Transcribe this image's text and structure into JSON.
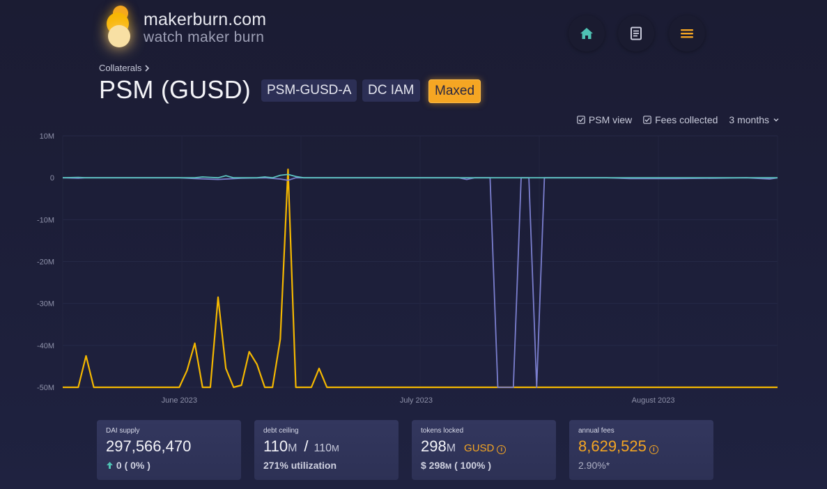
{
  "header": {
    "site": "makerburn.com",
    "tagline": "watch maker burn",
    "nav": [
      {
        "icon": "home-icon",
        "color": "#4fc3b4"
      },
      {
        "icon": "document-icon",
        "color": "#c9cbdb"
      },
      {
        "icon": "menu-icon",
        "color": "#f5a623"
      }
    ]
  },
  "breadcrumb": {
    "label": "Collaterals",
    "chevron": "chevron-right-icon"
  },
  "page": {
    "title": "PSM (GUSD)",
    "badges": [
      "PSM-GUSD-A",
      "DC IAM",
      "Maxed"
    ]
  },
  "controls": {
    "psm_view": "PSM view",
    "fees_collected": "Fees collected",
    "range": "3 months"
  },
  "chart_data": {
    "type": "line",
    "y_ticks": [
      "10M",
      "0",
      "-10M",
      "-20M",
      "-30M",
      "-40M",
      "-50M"
    ],
    "x_ticks": [
      "June 2023",
      "July 2023",
      "August 2023"
    ],
    "ylim": [
      -50,
      10
    ],
    "y_unit": "M",
    "series": [
      {
        "color": "#f5b800",
        "points": [
          [
            0,
            -50
          ],
          [
            2,
            -50
          ],
          [
            3,
            -42.5
          ],
          [
            4,
            -50
          ],
          [
            15,
            -50
          ],
          [
            16,
            -46
          ],
          [
            17,
            -39.5
          ],
          [
            18,
            -50
          ],
          [
            19,
            -50
          ],
          [
            20,
            -28.5
          ],
          [
            21,
            -45.5
          ],
          [
            22,
            -50
          ],
          [
            23,
            -49.5
          ],
          [
            24,
            -41.5
          ],
          [
            25,
            -44.5
          ],
          [
            26,
            -50
          ],
          [
            27,
            -50
          ],
          [
            28,
            -38.5
          ],
          [
            29,
            2
          ],
          [
            30,
            -50
          ],
          [
            32,
            -50
          ],
          [
            33,
            -45.5
          ],
          [
            34,
            -50
          ],
          [
            92,
            -50
          ]
        ]
      },
      {
        "color": "#7b7fcf",
        "points": [
          [
            0,
            0
          ],
          [
            2,
            -0.1
          ],
          [
            3,
            0
          ],
          [
            15,
            0
          ],
          [
            17,
            -0.2
          ],
          [
            20,
            -0.4
          ],
          [
            23,
            -0.1
          ],
          [
            26,
            0
          ],
          [
            28,
            -0.3
          ],
          [
            29,
            -0.6
          ],
          [
            30,
            0
          ],
          [
            51,
            0
          ],
          [
            52,
            -0.4
          ],
          [
            53,
            0
          ],
          [
            55,
            0
          ],
          [
            56,
            -50
          ],
          [
            58,
            -50
          ],
          [
            59,
            0
          ],
          [
            60,
            0
          ],
          [
            61,
            -50
          ],
          [
            62,
            0
          ],
          [
            70,
            0
          ],
          [
            73,
            -0.2
          ],
          [
            79,
            -0.2
          ],
          [
            84,
            -0.1
          ],
          [
            88,
            0
          ],
          [
            91,
            -0.3
          ],
          [
            92,
            0
          ]
        ]
      },
      {
        "color": "#5cc3c0",
        "points": [
          [
            0,
            0
          ],
          [
            2,
            0.1
          ],
          [
            3,
            0
          ],
          [
            17,
            0
          ],
          [
            18,
            0.2
          ],
          [
            19,
            0.1
          ],
          [
            20,
            0
          ],
          [
            21,
            0.5
          ],
          [
            22,
            0
          ],
          [
            25,
            0
          ],
          [
            26,
            0.2
          ],
          [
            27,
            0
          ],
          [
            28,
            0.6
          ],
          [
            29,
            0.8
          ],
          [
            30,
            0.3
          ],
          [
            31,
            0
          ],
          [
            92,
            0
          ]
        ]
      }
    ]
  },
  "cards": [
    {
      "label": "DAI supply",
      "value": "297,566,470",
      "change_arrow": "arrow-up-icon",
      "change": "0",
      "change_pct": "( 0% )"
    },
    {
      "label": "debt ceiling",
      "value": "110",
      "value_unit": "M",
      "separator": "/",
      "max": "110",
      "max_unit": "M",
      "sub": "271% utilization"
    },
    {
      "label": "tokens locked",
      "value": "298",
      "value_unit": "M",
      "token": "GUSD",
      "sub_prefix": "$ 298",
      "sub_unit": "M",
      "sub_pct": "( 100% )"
    },
    {
      "label": "annual fees",
      "value": "8,629,525",
      "sub": "2.90%*"
    }
  ]
}
